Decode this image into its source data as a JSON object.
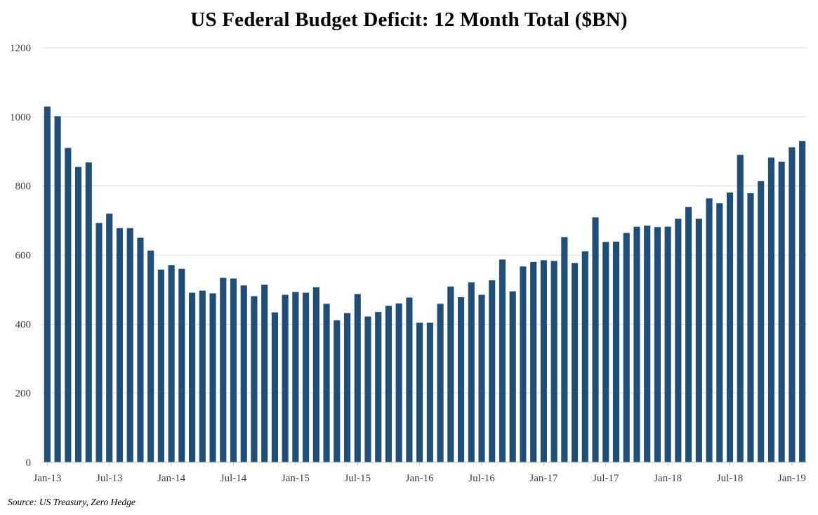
{
  "chart_data": {
    "type": "bar",
    "title": "US Federal Budget Deficit: 12 Month Total ($BN)",
    "source": "Source: US Treasury, Zero Hedge",
    "xlabel": "",
    "ylabel": "",
    "ylim": [
      0,
      1200
    ],
    "yticks": [
      0,
      200,
      400,
      600,
      800,
      1000,
      1200
    ],
    "grid": true,
    "bar_color": "#1f4e79",
    "categories": [
      "Jan-13",
      "Feb-13",
      "Mar-13",
      "Apr-13",
      "May-13",
      "Jun-13",
      "Jul-13",
      "Aug-13",
      "Sep-13",
      "Oct-13",
      "Nov-13",
      "Dec-13",
      "Jan-14",
      "Feb-14",
      "Mar-14",
      "Apr-14",
      "May-14",
      "Jun-14",
      "Jul-14",
      "Aug-14",
      "Sep-14",
      "Oct-14",
      "Nov-14",
      "Dec-14",
      "Jan-15",
      "Feb-15",
      "Mar-15",
      "Apr-15",
      "May-15",
      "Jun-15",
      "Jul-15",
      "Aug-15",
      "Sep-15",
      "Oct-15",
      "Nov-15",
      "Dec-15",
      "Jan-16",
      "Feb-16",
      "Mar-16",
      "Apr-16",
      "May-16",
      "Jun-16",
      "Jul-16",
      "Aug-16",
      "Sep-16",
      "Oct-16",
      "Nov-16",
      "Dec-16",
      "Jan-17",
      "Feb-17",
      "Mar-17",
      "Apr-17",
      "May-17",
      "Jun-17",
      "Jul-17",
      "Aug-17",
      "Sep-17",
      "Oct-17",
      "Nov-17",
      "Dec-17",
      "Jan-18",
      "Feb-18",
      "Mar-18",
      "Apr-18",
      "May-18",
      "Jun-18",
      "Jul-18",
      "Aug-18",
      "Sep-18",
      "Oct-18",
      "Nov-18",
      "Dec-18",
      "Jan-19",
      "Feb-19"
    ],
    "values": [
      1030,
      1002,
      910,
      855,
      868,
      693,
      720,
      678,
      678,
      650,
      613,
      558,
      571,
      560,
      491,
      497,
      489,
      534,
      532,
      512,
      481,
      514,
      434,
      485,
      493,
      491,
      507,
      459,
      411,
      432,
      487,
      422,
      435,
      453,
      460,
      477,
      404,
      404,
      459,
      509,
      478,
      521,
      485,
      527,
      587,
      495,
      567,
      580,
      585,
      583,
      652,
      577,
      611,
      709,
      638,
      639,
      664,
      682,
      685,
      681,
      682,
      705,
      739,
      705,
      764,
      750,
      781,
      890,
      779,
      814,
      882,
      870,
      912,
      930
    ],
    "xtick_labels": [
      "Jan-13",
      "Jul-13",
      "Jan-14",
      "Jul-14",
      "Jan-15",
      "Jul-15",
      "Jan-16",
      "Jul-16",
      "Jan-17",
      "Jul-17",
      "Jan-18",
      "Jul-18",
      "Jan-19"
    ]
  }
}
